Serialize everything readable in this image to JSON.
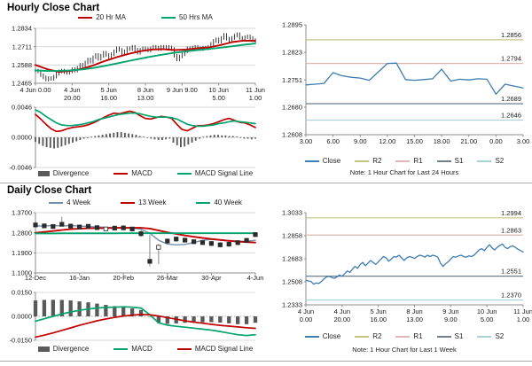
{
  "panels": {
    "hourly": {
      "title": "Hourly Close Chart"
    },
    "daily": {
      "title": "Daily Close Chart"
    }
  },
  "colors": {
    "ma_red": "#C00000",
    "ma_green": "#00A46C",
    "close_blue": "#3E7CB1",
    "week4_blue": "#7291AE",
    "divergence_gray": "#595959",
    "r2_olive": "#C6C380",
    "r1_salmon": "#DFB8B4",
    "s1_gray": "#6E7F8F",
    "s2_lightblue": "#AAD2DC",
    "grid": "#D8D8D8",
    "axis": "#8C8C8C",
    "candle": "#222222"
  },
  "chart_data": [
    {
      "id": "hourly-close",
      "type": "candlestick",
      "title": "Hourly Close Chart",
      "ylim": [
        1.2465,
        1.2834
      ],
      "y_ticks": [
        1.2834,
        1.2711,
        1.2588,
        1.2465
      ],
      "x_labels": [
        [
          "4 Jun 0.00"
        ],
        [
          "4 Jun",
          "20.00"
        ],
        [
          "5 Jun",
          "16.00"
        ],
        [
          "8 Jun",
          "13.00"
        ],
        [
          "9 Jun 9.00"
        ],
        [
          "10 Jun",
          "5.00"
        ],
        [
          "11 Jun",
          "1.00"
        ]
      ],
      "close": [
        1.255,
        1.2545,
        1.252,
        1.2505,
        1.249,
        1.25,
        1.2495,
        1.251,
        1.253,
        1.2545,
        1.255,
        1.254,
        1.2535,
        1.2545,
        1.256,
        1.255,
        1.257,
        1.259,
        1.258,
        1.2605,
        1.2625,
        1.261,
        1.264,
        1.2655,
        1.263,
        1.265,
        1.267,
        1.2655,
        1.264,
        1.266,
        1.268,
        1.27,
        1.269,
        1.2665,
        1.268,
        1.27,
        1.2695,
        1.271,
        1.269,
        1.267,
        1.269,
        1.27,
        1.2695,
        1.2685,
        1.27,
        1.271,
        1.2705,
        1.2695,
        1.271,
        1.27,
        1.271,
        1.2705,
        1.2695,
        1.265,
        1.2625,
        1.2645,
        1.266,
        1.268,
        1.27,
        1.2695,
        1.2705,
        1.271,
        1.27,
        1.2695,
        1.2705,
        1.27,
        1.271,
        1.273,
        1.275,
        1.276,
        1.2745,
        1.277,
        1.279,
        1.2765,
        1.275,
        1.277,
        1.2785,
        1.2795,
        1.277,
        1.276,
        1.2775,
        1.278,
        1.277,
        1.2755,
        1.275
      ],
      "series": [
        {
          "name": "20 Hr MA",
          "color": "#C00000",
          "values": [
            1.2588,
            1.256,
            1.2542,
            1.2548,
            1.2562,
            1.2585,
            1.2615,
            1.264,
            1.2662,
            1.268,
            1.2692,
            1.2695,
            1.2688,
            1.2692,
            1.27,
            1.2706,
            1.2722,
            1.2742,
            1.2752,
            1.275
          ]
        },
        {
          "name": "50 Hrs MA",
          "color": "#00A46C",
          "values": [
            1.2552,
            1.2548,
            1.2549,
            1.2552,
            1.2558,
            1.2568,
            1.2582,
            1.2598,
            1.2614,
            1.263,
            1.2645,
            1.2658,
            1.267,
            1.268,
            1.2688,
            1.2696,
            1.2704,
            1.2714,
            1.2724,
            1.2732
          ]
        }
      ],
      "macd": {
        "ylim": [
          -0.0046,
          0.0046
        ],
        "y_ticks": [
          0.0046,
          0.0,
          -0.0046
        ],
        "divergence": {
          "name": "Divergence",
          "color": "#595959",
          "values": [
            -0.0007,
            -0.001,
            -0.0013,
            -0.0015,
            -0.0016,
            -0.0017,
            -0.0016,
            -0.0014,
            -0.0012,
            -0.001,
            -0.0008,
            -0.0006,
            -0.0004,
            -0.0002,
            -0.0001,
            0.0001,
            0.0002,
            0.0003,
            0.0004,
            0.0005,
            0.0006,
            0.0007,
            0.0008,
            0.0008,
            0.0007,
            0.0006,
            0.0005,
            0.0004,
            0.0002,
            0.0001,
            -0.0001,
            -0.0002,
            -0.0003,
            -0.0004,
            -0.0004,
            -0.0003,
            -0.0002,
            -0.0008,
            -0.0012,
            -0.0015,
            -0.0014,
            -0.0011,
            -0.0008,
            -0.0005,
            -0.0002,
            0.0001,
            0.0002,
            0.0003,
            0.0004,
            0.0004,
            0.0003,
            0.0003,
            0.0002,
            0.0002,
            0.0001,
            -0.0001,
            -0.0002,
            -0.0002,
            -0.0003,
            -0.0002
          ]
        },
        "lines": [
          {
            "name": "MACD",
            "color": "#C00000",
            "values": [
              0.0035,
              0.0028,
              0.002,
              0.0013,
              0.0009,
              0.001,
              0.0013,
              0.0015,
              0.0016,
              0.0017,
              0.0019,
              0.0022,
              0.0026,
              0.003,
              0.0034,
              0.0037,
              0.0036,
              0.0038,
              0.004,
              0.0038,
              0.0033,
              0.0029,
              0.0028,
              0.003,
              0.0032,
              0.0031,
              0.0029,
              0.002,
              0.0012,
              0.001,
              0.0014,
              0.0018,
              0.0018,
              0.0019,
              0.0021,
              0.0024,
              0.0027,
              0.0029,
              0.0026,
              0.0023,
              0.0022,
              0.0019,
              0.0015
            ]
          },
          {
            "name": "MACD Signal Line",
            "color": "#00A46C",
            "values": [
              0.0042,
              0.0038,
              0.0032,
              0.0027,
              0.0022,
              0.0019,
              0.0018,
              0.0018,
              0.0019,
              0.002,
              0.0022,
              0.0024,
              0.0027,
              0.0029,
              0.0031,
              0.0033,
              0.0035,
              0.0036,
              0.0037,
              0.0037,
              0.0036,
              0.0034,
              0.0032,
              0.0031,
              0.0031,
              0.0031,
              0.003,
              0.0028,
              0.0024,
              0.002,
              0.0018,
              0.0017,
              0.0017,
              0.0018,
              0.0019,
              0.0021,
              0.0022,
              0.0024,
              0.0025,
              0.0024,
              0.0023,
              0.0022,
              0.0021
            ]
          }
        ]
      }
    },
    {
      "id": "last-24-hours",
      "type": "line",
      "ylim": [
        1.2608,
        1.2895
      ],
      "y_ticks": [
        1.2895,
        1.2823,
        1.2751,
        1.268,
        1.2608
      ],
      "x_labels": [
        "3.00",
        "6.00",
        "9.00",
        "12.00",
        "15.00",
        "18.00",
        "21.00",
        "0.00",
        "3.00"
      ],
      "close": {
        "name": "Close",
        "color": "#3E7CB1",
        "values": [
          1.2738,
          1.274,
          1.2742,
          1.277,
          1.2762,
          1.2758,
          1.2756,
          1.275,
          1.2772,
          1.2794,
          1.2795,
          1.2752,
          1.275,
          1.2752,
          1.2754,
          1.2779,
          1.2748,
          1.2753,
          1.2751,
          1.2754,
          1.2753,
          1.2714,
          1.274,
          1.2735,
          1.273
        ]
      },
      "pivots": [
        {
          "name": "R2",
          "value": 1.2856,
          "color": "#C6C380"
        },
        {
          "name": "R1",
          "value": 1.2794,
          "color": "#DFB8B4"
        },
        {
          "name": "S1",
          "value": 1.2689,
          "color": "#6E7F8F"
        },
        {
          "name": "S2",
          "value": 1.2646,
          "color": "#AAD2DC"
        }
      ],
      "note": "Note: 1 Hour Chart for Last 24 Hours"
    },
    {
      "id": "daily-close",
      "type": "weekly-candlestick",
      "title": "Daily Close Chart",
      "ylim": [
        1.1,
        1.37
      ],
      "y_ticks": [
        1.37,
        1.28,
        1.19,
        1.1
      ],
      "x_labels": [
        "12-Dec",
        "16-Jan",
        "20-Feb",
        "26-Mar",
        "30-Apr",
        "4-Jun"
      ],
      "candles": {
        "close": [
          1.315,
          1.311,
          1.308,
          1.318,
          1.31,
          1.306,
          1.309,
          1.303,
          1.297,
          1.301,
          1.302,
          1.297,
          1.276,
          1.152,
          1.215,
          1.243,
          1.252,
          1.247,
          1.24,
          1.236,
          1.232,
          1.226,
          1.229,
          1.236,
          1.246,
          1.272
        ],
        "high": [
          1.332,
          1.318,
          1.314,
          1.352,
          1.32,
          1.312,
          1.315,
          1.31,
          1.305,
          1.307,
          1.308,
          1.304,
          1.3,
          1.27,
          1.23,
          1.252,
          1.26,
          1.256,
          1.25,
          1.246,
          1.242,
          1.238,
          1.24,
          1.246,
          1.256,
          1.28
        ],
        "low": [
          1.308,
          1.305,
          1.3,
          1.31,
          1.303,
          1.298,
          1.302,
          1.296,
          1.29,
          1.294,
          1.296,
          1.29,
          1.262,
          1.13,
          1.14,
          1.228,
          1.24,
          1.238,
          1.23,
          1.226,
          1.22,
          1.214,
          1.218,
          1.224,
          1.234,
          1.262
        ],
        "hollow": [
          8,
          14
        ]
      },
      "series": [
        {
          "name": "4 Week",
          "color": "#7291AE",
          "values": [
            1.31,
            1.311,
            1.312,
            1.311,
            1.312,
            1.31,
            1.308,
            1.306,
            1.305,
            1.302,
            1.301,
            1.3,
            1.296,
            1.278,
            1.246,
            1.23,
            1.226,
            1.228,
            1.236,
            1.246,
            1.25,
            1.247,
            1.243,
            1.24,
            1.242,
            1.246
          ]
        },
        {
          "name": "13 Week",
          "color": "#C00000",
          "values": [
            1.28,
            1.284,
            1.288,
            1.292,
            1.296,
            1.298,
            1.3,
            1.301,
            1.301,
            1.302,
            1.302,
            1.302,
            1.302,
            1.299,
            1.29,
            1.282,
            1.275,
            1.268,
            1.262,
            1.257,
            1.252,
            1.248,
            1.244,
            1.241,
            1.238,
            1.236
          ]
        },
        {
          "name": "40 Week",
          "color": "#00A46C",
          "values": [
            1.277,
            1.2771,
            1.2772,
            1.2773,
            1.2774,
            1.2774,
            1.2775,
            1.2775,
            1.2776,
            1.2776,
            1.2777,
            1.2777,
            1.2777,
            1.2778,
            1.2778,
            1.2778,
            1.2779,
            1.2779,
            1.2779,
            1.278,
            1.278,
            1.278,
            1.278,
            1.278,
            1.278,
            1.278
          ]
        }
      ],
      "macd": {
        "ylim": [
          -0.015,
          0.015
        ],
        "y_ticks": [
          0.015,
          0.0,
          -0.015
        ],
        "divergence": {
          "name": "Divergence",
          "color": "#595959",
          "values": [
            0.01,
            0.0103,
            0.0104,
            0.0103,
            0.01,
            0.0094,
            0.0088,
            0.008,
            0.0072,
            0.0064,
            0.0058,
            0.005,
            0.004,
            0.0,
            -0.0042,
            -0.0047,
            -0.0044,
            -0.004,
            -0.0038,
            -0.0037,
            -0.0036,
            -0.0039,
            -0.0044,
            -0.0049,
            -0.0049,
            -0.004
          ]
        },
        "lines": [
          {
            "name": "MACD",
            "color": "#00A46C",
            "values": [
              -0.003,
              -0.0015,
              0.0,
              0.0015,
              0.0028,
              0.0038,
              0.0046,
              0.0052,
              0.0056,
              0.0058,
              0.006,
              0.0058,
              0.0052,
              0.001,
              -0.004,
              -0.0055,
              -0.0062,
              -0.0068,
              -0.0074,
              -0.008,
              -0.0086,
              -0.0095,
              -0.0105,
              -0.0115,
              -0.012,
              -0.0115
            ]
          },
          {
            "name": "MACD Signal Line",
            "color": "#C00000",
            "values": [
              -0.013,
              -0.0118,
              -0.0104,
              -0.0088,
              -0.0072,
              -0.0056,
              -0.0042,
              -0.0028,
              -0.0016,
              -0.0006,
              0.0002,
              0.0008,
              0.0012,
              0.001,
              0.0002,
              -0.0008,
              -0.0018,
              -0.0028,
              -0.0036,
              -0.0043,
              -0.005,
              -0.0056,
              -0.0061,
              -0.0066,
              -0.0071,
              -0.0075
            ]
          }
        ]
      }
    },
    {
      "id": "last-1-week",
      "type": "line",
      "ylim": [
        1.2333,
        1.3033
      ],
      "y_ticks": [
        1.3033,
        1.2858,
        1.2683,
        1.2508,
        1.2333
      ],
      "x_labels": [
        [
          "4 Jun",
          "0.00"
        ],
        [
          "4 Jun",
          "20.00"
        ],
        [
          "5 Jun",
          "16.00"
        ],
        [
          "8 Jun",
          "13.00"
        ],
        [
          "9 Jun",
          "9.00"
        ],
        [
          "10 Jun",
          "5.00"
        ],
        [
          "11 Jun",
          "1.00"
        ]
      ],
      "close": {
        "name": "Close",
        "color": "#3E7CB1",
        "values": [
          1.252,
          1.2515,
          1.251,
          1.249,
          1.25,
          1.2495,
          1.251,
          1.253,
          1.2545,
          1.255,
          1.254,
          1.2535,
          1.2545,
          1.256,
          1.255,
          1.257,
          1.259,
          1.258,
          1.2605,
          1.2625,
          1.261,
          1.264,
          1.2655,
          1.263,
          1.265,
          1.267,
          1.2655,
          1.264,
          1.266,
          1.268,
          1.27,
          1.269,
          1.2665,
          1.268,
          1.27,
          1.2695,
          1.271,
          1.269,
          1.267,
          1.269,
          1.27,
          1.2695,
          1.2685,
          1.27,
          1.271,
          1.2705,
          1.2695,
          1.271,
          1.27,
          1.271,
          1.2705,
          1.2695,
          1.265,
          1.2625,
          1.2645,
          1.266,
          1.268,
          1.27,
          1.2695,
          1.2705,
          1.271,
          1.27,
          1.2695,
          1.2705,
          1.27,
          1.271,
          1.273,
          1.275,
          1.276,
          1.2745,
          1.277,
          1.279,
          1.2765,
          1.275,
          1.277,
          1.2785,
          1.2795,
          1.277,
          1.276,
          1.2775,
          1.278,
          1.277,
          1.2755,
          1.2745,
          1.2735
        ]
      },
      "pivots": [
        {
          "name": "R2",
          "value": 1.2994,
          "color": "#C6C380"
        },
        {
          "name": "R1",
          "value": 1.2863,
          "color": "#DFB8B4"
        },
        {
          "name": "S1",
          "value": 1.2551,
          "color": "#6E7F8F"
        },
        {
          "name": "S2",
          "value": 1.237,
          "color": "#AAD2DC"
        }
      ],
      "note": "Note: 1 Hour Chart for Last 1 Week"
    }
  ]
}
